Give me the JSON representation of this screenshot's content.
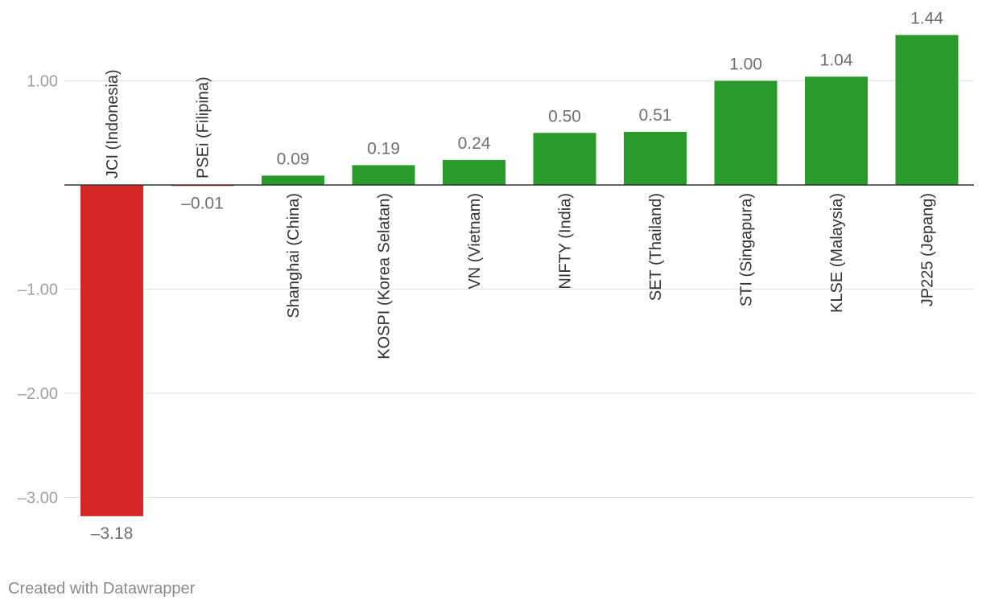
{
  "chart_data": {
    "type": "bar",
    "categories": [
      "JCI (Indonesia)",
      "PSEi (Filipina)",
      "Shanghai (China)",
      "KOSPI (Korea Selatan)",
      "VN (Vietnam)",
      "NIFTY (India)",
      "SET (Thailand)",
      "STI (Singapura)",
      "KLSE (Malaysia)",
      "JP225 (Jepang)"
    ],
    "values": [
      -3.18,
      -0.01,
      0.09,
      0.19,
      0.24,
      0.5,
      0.51,
      1.0,
      1.04,
      1.44
    ],
    "value_labels": [
      "–3.18",
      "–0.01",
      "0.09",
      "0.19",
      "0.24",
      "0.50",
      "0.51",
      "1.00",
      "1.04",
      "1.44"
    ],
    "ylim": [
      -3.4,
      1.5
    ],
    "y_ticks": [
      1.0,
      -1.0,
      -2.0,
      -3.0
    ],
    "y_tick_labels": [
      "1.00",
      "–1.00",
      "–2.00",
      "–3.00"
    ],
    "title": "",
    "xlabel": "",
    "ylabel": "",
    "grid": true,
    "colors": {
      "negative": "#d62728",
      "positive": "#2a9a2a",
      "grid": "#e2e2e2",
      "axis": "#333333",
      "tick_label": "#a0a0a0",
      "value_label": "#707070",
      "category_label": "#333333"
    }
  },
  "footer": {
    "credit": "Created with Datawrapper"
  }
}
